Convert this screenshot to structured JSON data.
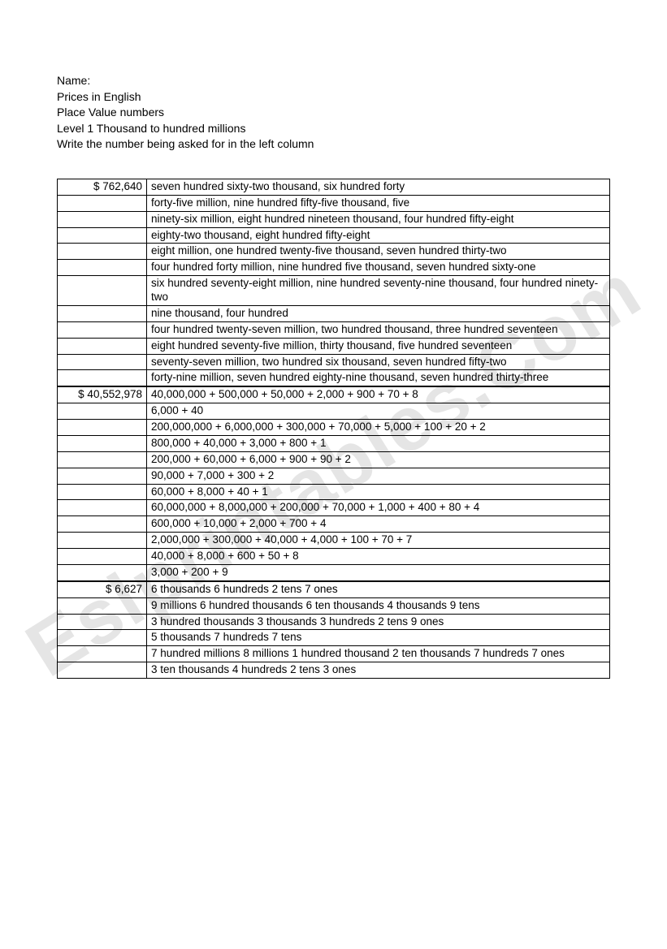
{
  "header": {
    "line1": "Name:",
    "line2": "Prices in English",
    "line3": "Place Value numbers",
    "line4": "Level 1 Thousand to hundred millions",
    "line5": "Write the number being asked for in the left column"
  },
  "watermark": "Eslprintables.Com",
  "section1": {
    "answer": "$ 762,640",
    "rows": [
      "seven hundred sixty-two thousand, six hundred forty",
      "forty-five million, nine hundred fifty-five thousand, five",
      "ninety-six million, eight hundred nineteen thousand, four hundred fifty-eight",
      "eighty-two thousand, eight hundred fifty-eight",
      "eight million, one hundred twenty-five thousand, seven hundred thirty-two",
      "four hundred forty million, nine hundred five thousand, seven hundred sixty-one",
      "six hundred seventy-eight million, nine hundred seventy-nine thousand, four hundred ninety-two",
      "nine thousand, four hundred",
      "four hundred twenty-seven million, two hundred thousand, three hundred seventeen",
      "eight hundred seventy-five million, thirty thousand, five hundred seventeen",
      "seventy-seven million, two hundred six thousand, seven hundred fifty-two",
      "forty-nine million, seven hundred eighty-nine thousand, seven hundred thirty-three"
    ]
  },
  "section2": {
    "answer": "$ 40,552,978",
    "rows": [
      "40,000,000 + 500,000 + 50,000 + 2,000 + 900 + 70 + 8",
      "6,000 + 40",
      "200,000,000 + 6,000,000 + 300,000 + 70,000 + 5,000 + 100 + 20 + 2",
      "800,000 + 40,000 + 3,000 + 800 + 1",
      "200,000 + 60,000 + 6,000 + 900 + 90 + 2",
      "90,000 + 7,000 + 300 + 2",
      "60,000 + 8,000 + 40 + 1",
      "60,000,000 + 8,000,000 + 200,000 + 70,000 + 1,000 + 400 + 80 + 4",
      "600,000 + 10,000 + 2,000 + 700 + 4",
      "2,000,000 + 300,000 + 40,000 + 4,000 + 100 + 70 + 7",
      "40,000 + 8,000 + 600 + 50 + 8",
      "3,000 + 200 + 9"
    ]
  },
  "section3": {
    "answer": "$ 6,627",
    "rows": [
      "6 thousands 6 hundreds 2 tens 7 ones",
      "9 millions 6 hundred thousands 6 ten thousands 4 thousands 9 tens",
      "3 hundred thousands 3 thousands 3 hundreds 2 tens 9 ones",
      "5 thousands 7 hundreds 7 tens",
      "7 hundred millions 8 millions 1 hundred thousand 2 ten thousands 7 hundreds 7 ones",
      "3 ten thousands 4 hundreds 2 tens 3 ones"
    ]
  }
}
